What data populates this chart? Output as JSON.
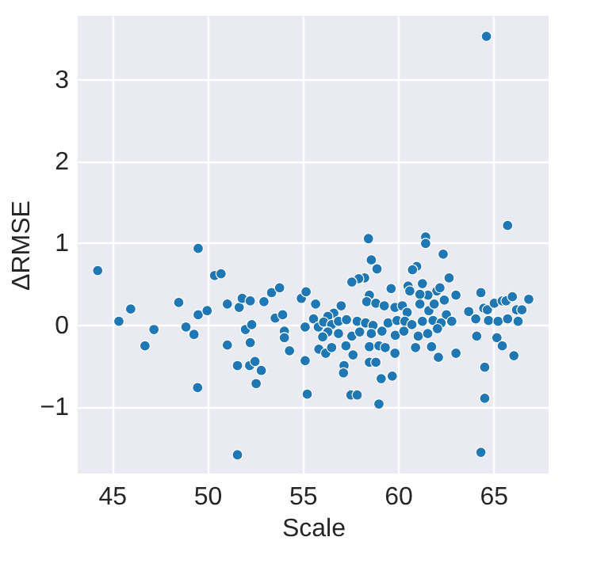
{
  "chart_data": {
    "type": "scatter",
    "xlabel": "Scale",
    "ylabel": "ΔRMSE",
    "xlim": [
      43.2,
      67.9
    ],
    "ylim": [
      -1.82,
      3.77
    ],
    "xticks": [
      45,
      50,
      55,
      60,
      65
    ],
    "yticks": [
      -1,
      0,
      1,
      2,
      3
    ],
    "grid": true,
    "marker": "circle",
    "legend": false,
    "series": [
      {
        "color": "#1f77b4",
        "x": [
          44.25,
          45.36,
          45.98,
          46.73,
          47.2,
          48.5,
          48.88,
          49.3,
          49.52,
          49.49,
          49.52,
          49.99,
          50.38,
          50.72,
          51.05,
          51.05,
          51.58,
          51.58,
          51.67,
          51.83,
          52.0,
          52.25,
          52.25,
          52.33,
          52.22,
          52.5,
          52.83,
          52.56,
          52.97,
          53.37,
          53.79,
          53.56,
          53.95,
          54.04,
          54.04,
          54.31,
          54.93,
          55.18,
          55.13,
          55.13,
          55.24,
          55.68,
          55.57,
          64.64,
          65.75,
          58.45,
          61.45,
          61.45,
          62.37,
          58.6,
          58.9,
          60.98,
          60.76,
          62.68,
          58.25,
          57.94,
          57.58,
          59.64,
          60.53,
          60.62,
          61.28,
          62.04,
          62.2,
          62.68,
          63.04,
          62.43,
          61.57,
          61.15,
          58.5,
          58.36,
          58.84,
          59.28,
          59.84,
          60.23,
          60.48,
          61.15,
          61.62,
          61.9,
          62.54,
          62.82,
          57.02,
          56.63,
          56.32,
          55.82,
          56.1,
          56.52,
          56.88,
          57.3,
          57.86,
          58.3,
          58.69,
          59.48,
          59.95,
          60.36,
          60.73,
          61.28,
          61.84,
          62.26,
          56.32,
          56.05,
          56.88,
          57.58,
          57.99,
          58.6,
          59.16,
          59.86,
          60.31,
          61.06,
          61.56,
          62.07,
          55.85,
          56.21,
          56.52,
          57.27,
          58.5,
          59.0,
          59.33,
          59.84,
          60.92,
          61.76,
          62.12,
          63.04,
          57.64,
          57.17,
          57.14,
          58.5,
          58.84,
          59.12,
          59.7,
          57.53,
          57.86,
          59.0,
          63.71,
          64.08,
          64.35,
          64.5,
          64.69,
          64.75,
          65.05,
          65.25,
          65.47,
          65.67,
          65.75,
          66.0,
          66.22,
          66.3,
          66.5,
          66.86,
          64.13,
          65.19,
          65.47,
          66.08,
          64.55,
          64.55,
          64.35
        ],
        "values": [
          0.66,
          0.04,
          0.19,
          -0.26,
          -0.06,
          0.27,
          -0.03,
          -0.12,
          0.93,
          -0.77,
          0.12,
          0.17,
          0.6,
          0.62,
          0.25,
          -0.25,
          -1.59,
          -0.5,
          0.21,
          0.32,
          -0.06,
          0.29,
          -0.22,
          0.0,
          -0.5,
          -0.45,
          -0.56,
          -0.72,
          0.28,
          0.39,
          0.45,
          0.08,
          0.12,
          -0.08,
          -0.16,
          -0.32,
          0.32,
          0.4,
          -0.03,
          -0.44,
          -0.85,
          0.25,
          0.07,
          3.52,
          1.21,
          1.05,
          1.07,
          0.99,
          0.86,
          0.79,
          0.68,
          0.71,
          0.67,
          0.56,
          0.57,
          0.56,
          0.52,
          0.44,
          0.47,
          0.41,
          0.5,
          0.41,
          0.45,
          0.57,
          0.36,
          0.3,
          0.36,
          0.37,
          0.36,
          0.28,
          0.26,
          0.23,
          0.21,
          0.23,
          0.15,
          0.25,
          0.17,
          0.25,
          0.12,
          0.04,
          0.23,
          0.14,
          0.1,
          -0.03,
          0.03,
          0.0,
          0.04,
          0.06,
          0.04,
          0.02,
          -0.01,
          0.02,
          0.05,
          0.04,
          0.0,
          0.04,
          0.05,
          0.02,
          -0.09,
          -0.15,
          -0.11,
          -0.14,
          -0.09,
          -0.11,
          -0.08,
          -0.13,
          -0.08,
          -0.14,
          -0.11,
          -0.05,
          -0.3,
          -0.35,
          -0.28,
          -0.26,
          -0.27,
          -0.26,
          -0.28,
          -0.35,
          -0.28,
          -0.27,
          -0.4,
          -0.35,
          -0.37,
          -0.5,
          -0.59,
          -0.46,
          -0.46,
          -0.66,
          -0.63,
          -0.86,
          -0.86,
          -0.97,
          0.16,
          0.07,
          0.39,
          0.2,
          0.18,
          0.05,
          0.26,
          0.04,
          0.29,
          0.29,
          0.07,
          0.34,
          0.18,
          0.04,
          0.18,
          0.31,
          -0.14,
          -0.16,
          -0.26,
          -0.38,
          -0.52,
          -0.9,
          -1.56
        ]
      }
    ]
  }
}
